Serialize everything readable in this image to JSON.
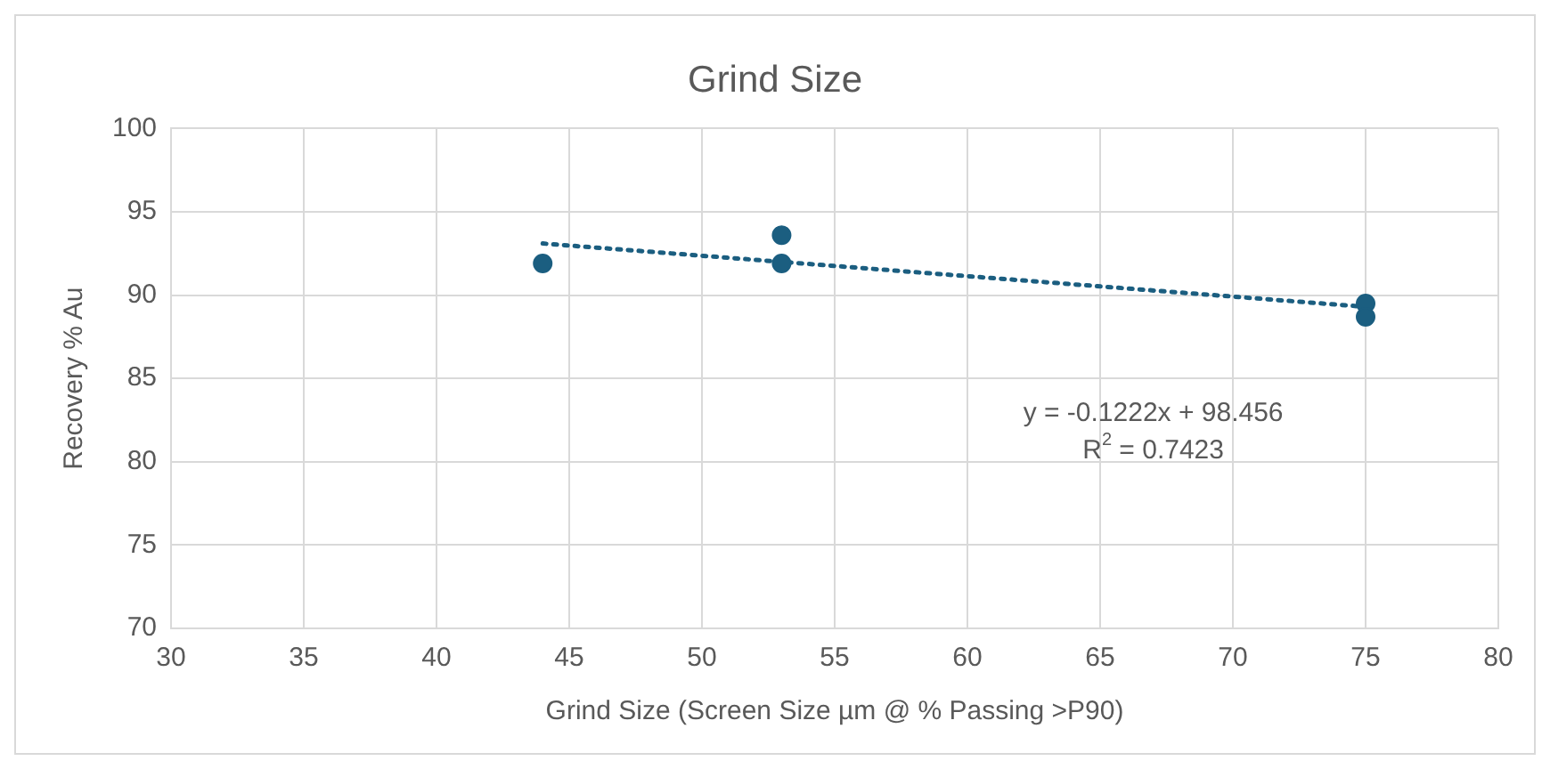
{
  "chart_data": {
    "type": "scatter",
    "title": "Grind Size",
    "xlabel": "Grind Size (Screen Size µm @ % Passing >P90)",
    "ylabel": "Recovery % Au",
    "series": [
      {
        "color": "#1b5e80",
        "x": [
          44,
          53,
          53,
          75,
          75
        ],
        "values": [
          91.9,
          93.6,
          91.9,
          89.5,
          88.7
        ],
        "marker": "circle"
      },
      {
        "type": "line",
        "color": "#1b5e80",
        "x": [
          44,
          75
        ],
        "values": [
          93.1,
          89.3
        ],
        "marker": "none",
        "line_style": "dotted"
      }
    ],
    "xlim": [
      30,
      80
    ],
    "xticks": [
      30,
      35,
      40,
      45,
      50,
      55,
      60,
      65,
      70,
      75,
      80
    ],
    "ylim": [
      70,
      100
    ],
    "yticks": [
      70,
      75,
      80,
      85,
      90,
      95,
      100
    ],
    "grid": true,
    "legend": false,
    "annotations": [
      "y = -0.1222x + 98.456",
      "R$^{2}$ = 0.7423"
    ]
  }
}
